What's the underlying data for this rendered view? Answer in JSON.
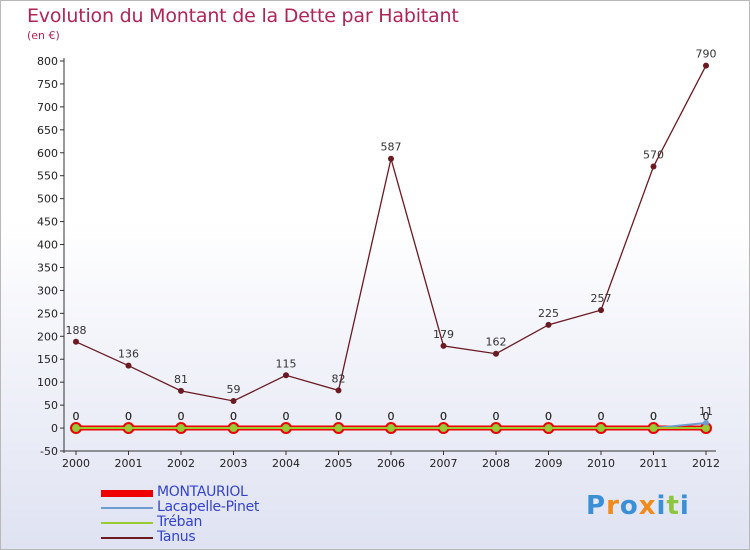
{
  "chart_data": {
    "type": "line",
    "title": "Evolution du Montant de la Dette par Habitant",
    "subtitle": "(en €)",
    "x": [
      "2000",
      "2001",
      "2002",
      "2003",
      "2004",
      "2005",
      "2006",
      "2007",
      "2008",
      "2009",
      "2010",
      "2011",
      "2012"
    ],
    "ylim": [
      -50,
      800
    ],
    "yticks": [
      -50,
      0,
      50,
      100,
      150,
      200,
      250,
      300,
      350,
      400,
      450,
      500,
      550,
      600,
      650,
      700,
      750,
      800
    ],
    "grid": false,
    "legend_position": "bottom-left",
    "series": [
      {
        "name": "MONTAURIOL",
        "color": "#ee0000",
        "values": [
          0,
          0,
          0,
          0,
          0,
          0,
          0,
          0,
          0,
          0,
          0,
          0,
          0
        ]
      },
      {
        "name": "Lacapelle-Pinet",
        "color": "#6f9ccf",
        "values": [
          0,
          0,
          0,
          0,
          0,
          0,
          0,
          0,
          0,
          0,
          0,
          0,
          11
        ]
      },
      {
        "name": "Tréban",
        "color": "#99cc33",
        "values": [
          0,
          0,
          0,
          0,
          0,
          0,
          0,
          0,
          0,
          0,
          0,
          0,
          0
        ]
      },
      {
        "name": "Tanus",
        "color": "#6b1a22",
        "values": [
          188,
          136,
          81,
          59,
          115,
          82,
          587,
          179,
          162,
          225,
          257,
          570,
          790
        ]
      }
    ]
  },
  "logo": {
    "text": "Proxiti",
    "colors": [
      "#3a8fd6",
      "#f08a1c",
      "#3a8fd6",
      "#f08a1c",
      "#3a8fd6",
      "#8cc63f",
      "#3a8fd6"
    ]
  }
}
